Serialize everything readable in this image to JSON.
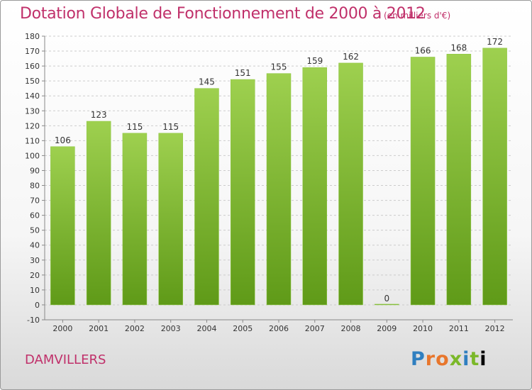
{
  "header": {
    "title": "Dotation Globale de Fonctionnement de 2000 à 2012",
    "subtitle": "(en milliers d'€)"
  },
  "footer": {
    "commune": "DAMVILLERS",
    "logo_text": "Proxiti",
    "logo_letters": [
      "P",
      "r",
      "o",
      "x",
      "i",
      "t",
      "i"
    ]
  },
  "colors": {
    "title": "#c0306a",
    "bar_top": "#9ed04f",
    "bar_bottom": "#5f9a18",
    "grid": "#cccccc",
    "axis_text": "#333333"
  },
  "chart_data": {
    "type": "bar",
    "title": "Dotation Globale de Fonctionnement de 2000 à 2012",
    "subtitle": "(en milliers d'€)",
    "categories": [
      "2000",
      "2001",
      "2002",
      "2003",
      "2004",
      "2005",
      "2006",
      "2007",
      "2008",
      "2009",
      "2010",
      "2011",
      "2012"
    ],
    "values": [
      106,
      123,
      115,
      115,
      145,
      151,
      155,
      159,
      162,
      0,
      166,
      168,
      172
    ],
    "value_labels": [
      "106",
      "123",
      "115",
      "115",
      "145",
      "151",
      "155",
      "159",
      "162",
      "0",
      "166",
      "168",
      "172"
    ],
    "ylim": [
      -10,
      180
    ],
    "yticks": [
      -10,
      0,
      10,
      20,
      30,
      40,
      50,
      60,
      70,
      80,
      90,
      100,
      110,
      120,
      130,
      140,
      150,
      160,
      170,
      180
    ],
    "grid": true,
    "legend": "none"
  }
}
